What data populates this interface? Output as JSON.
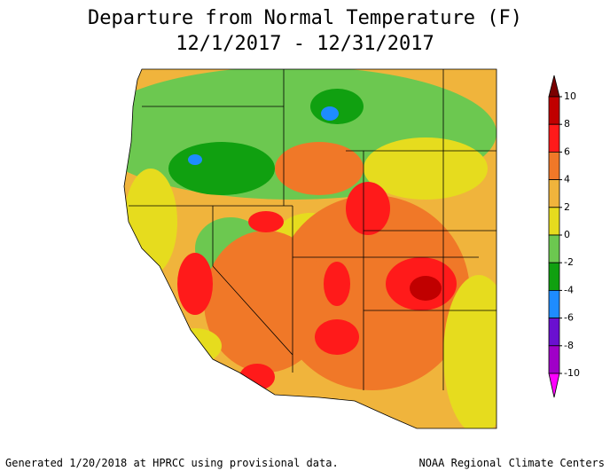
{
  "header": {
    "title": "Departure from Normal Temperature (F)",
    "subtitle": "12/1/2017 - 12/31/2017"
  },
  "legend": {
    "ticks": [
      10,
      8,
      6,
      4,
      2,
      0,
      -2,
      -4,
      -6,
      -8,
      -10
    ],
    "colors": [
      "#7a0000",
      "#c00000",
      "#ff1a1a",
      "#f07828",
      "#f0b43c",
      "#e6dc1e",
      "#6cc850",
      "#10a010",
      "#1e8cff",
      "#6a10d0",
      "#a000c8",
      "#ff00ff"
    ]
  },
  "footer": {
    "left": "Generated 1/20/2018 at HPRCC using provisional data.",
    "right": "NOAA Regional Climate Centers"
  }
}
